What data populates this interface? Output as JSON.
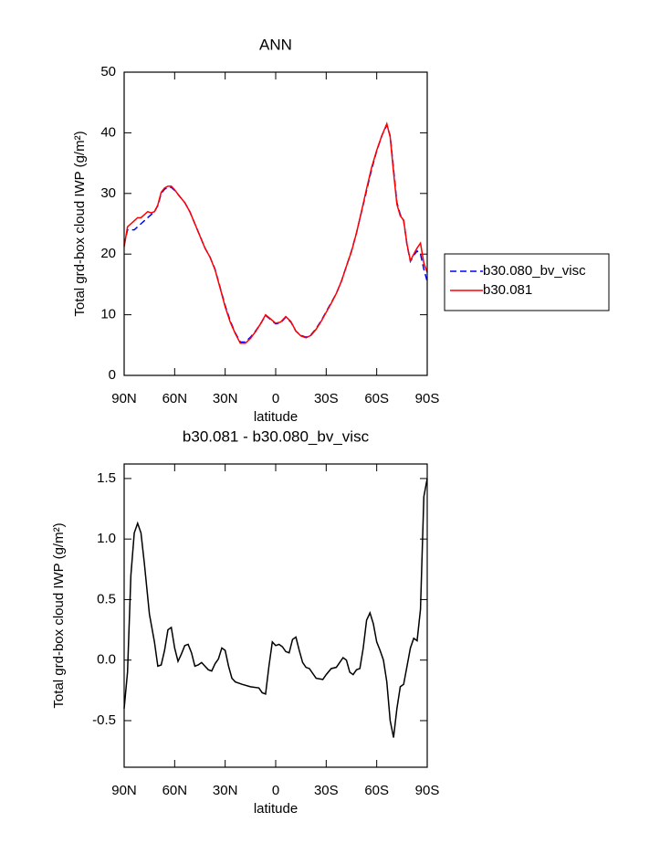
{
  "chart_data": [
    {
      "type": "line",
      "title": "ANN",
      "xlabel": "latitude",
      "ylabel": "Total grd-box cloud IWP (g/m²)",
      "x": [
        90,
        88,
        86,
        84,
        82,
        80,
        78,
        76,
        74,
        72,
        70,
        68,
        66,
        64,
        62,
        60,
        57,
        54,
        51,
        48,
        45,
        42,
        39,
        36,
        33,
        30,
        27,
        24,
        21,
        18,
        15,
        12,
        9,
        6,
        3,
        0,
        -3,
        -6,
        -9,
        -12,
        -15,
        -18,
        -21,
        -24,
        -27,
        -30,
        -33,
        -36,
        -39,
        -42,
        -45,
        -48,
        -51,
        -54,
        -57,
        -60,
        -63,
        -66,
        -68,
        -70,
        -72,
        -74,
        -76,
        -78,
        -80,
        -82,
        -84,
        -86,
        -88,
        -90
      ],
      "series": [
        {
          "name": "b30.080_bv_visc",
          "color": "#0000ff",
          "linestyle": "dashed",
          "values": [
            21.5,
            24,
            24,
            24,
            24.5,
            25,
            25.5,
            26,
            26.5,
            27,
            28,
            30,
            30.7,
            31,
            31,
            30.5,
            29.5,
            28.5,
            27,
            25,
            23,
            21,
            19.5,
            17.5,
            14.5,
            11.5,
            9,
            7,
            5.5,
            5.5,
            6.3,
            7.3,
            8.5,
            9.9,
            9.2,
            8.5,
            8.7,
            9.6,
            8.8,
            7.3,
            6.6,
            6.3,
            6.7,
            7.7,
            9,
            10.5,
            12,
            13.5,
            15.5,
            18,
            20.5,
            23.5,
            27,
            30.5,
            34,
            37,
            39.5,
            41.3,
            39.5,
            34,
            28.5,
            26.5,
            25.5,
            21.5,
            18.8,
            19.8,
            20.5,
            20,
            17.5,
            15.5
          ]
        },
        {
          "name": "b30.081",
          "color": "#ff0000",
          "linestyle": "solid",
          "values": [
            21.2,
            24.5,
            25,
            25.5,
            26,
            26,
            26.5,
            27,
            26.8,
            27,
            28.1,
            30.2,
            30.9,
            31.2,
            31.2,
            30.6,
            29.5,
            28.5,
            27,
            25,
            23,
            21,
            19.5,
            17.4,
            14.4,
            11.3,
            8.8,
            6.9,
            5.3,
            5.3,
            6.1,
            7.2,
            8.5,
            10,
            9.3,
            8.6,
            8.8,
            9.7,
            8.9,
            7.3,
            6.5,
            6.2,
            6.6,
            7.6,
            8.9,
            10.4,
            11.9,
            13.5,
            15.5,
            18,
            20.4,
            23.5,
            27.1,
            30.8,
            34.3,
            37.1,
            39.5,
            41.5,
            39.3,
            33.5,
            28.2,
            26.3,
            25.6,
            21.6,
            18.9,
            20,
            21,
            21.8,
            18.5,
            17
          ]
        }
      ],
      "xlim": [
        90,
        -90
      ],
      "xticks": [
        {
          "value": 90,
          "label": "90N"
        },
        {
          "value": 60,
          "label": "60N"
        },
        {
          "value": 30,
          "label": "30N"
        },
        0,
        {
          "value": -30,
          "label": "30S"
        },
        {
          "value": -60,
          "label": "60S"
        },
        {
          "value": -90,
          "label": "90S"
        }
      ],
      "ylim": [
        0,
        50
      ],
      "yticks": [
        0,
        10,
        20,
        30,
        40,
        50
      ],
      "legend": "right"
    },
    {
      "type": "line",
      "title": "b30.081 - b30.080_bv_visc",
      "xlabel": "latitude",
      "ylabel": "Total grd-box cloud IWP (g/m²)",
      "x": [
        90,
        88,
        86,
        84,
        82,
        80,
        78,
        75,
        72,
        70,
        68,
        66,
        64,
        62,
        60,
        58,
        56,
        54,
        52,
        50,
        48,
        46,
        44,
        42,
        40,
        38,
        36,
        34,
        32,
        30,
        28,
        26,
        24,
        20,
        15,
        10,
        8,
        6,
        4,
        2,
        0,
        -2,
        -4,
        -6,
        -8,
        -10,
        -12,
        -14,
        -16,
        -18,
        -20,
        -24,
        -28,
        -30,
        -33,
        -36,
        -40,
        -42,
        -44,
        -46,
        -48,
        -50,
        -52,
        -54,
        -56,
        -58,
        -60,
        -62,
        -64,
        -66,
        -68,
        -70,
        -72,
        -74,
        -76,
        -78,
        -80,
        -82,
        -84,
        -86,
        -88,
        -90
      ],
      "color": "#000000",
      "values": [
        -0.4,
        -0.1,
        0.7,
        1.05,
        1.13,
        1.05,
        0.8,
        0.38,
        0.15,
        -0.05,
        -0.04,
        0.08,
        0.25,
        0.27,
        0.1,
        -0.01,
        0.05,
        0.12,
        0.13,
        0.06,
        -0.05,
        -0.04,
        -0.02,
        -0.05,
        -0.08,
        -0.09,
        -0.03,
        0.01,
        0.1,
        0.08,
        -0.05,
        -0.15,
        -0.18,
        -0.2,
        -0.22,
        -0.23,
        -0.27,
        -0.28,
        -0.05,
        0.15,
        0.12,
        0.13,
        0.11,
        0.07,
        0.06,
        0.17,
        0.19,
        0.08,
        -0.02,
        -0.06,
        -0.07,
        -0.15,
        -0.16,
        -0.12,
        -0.07,
        -0.06,
        0.02,
        0,
        -0.1,
        -0.12,
        -0.08,
        -0.07,
        0.1,
        0.33,
        0.39,
        0.3,
        0.15,
        0.08,
        0,
        -0.18,
        -0.5,
        -0.64,
        -0.4,
        -0.22,
        -0.2,
        -0.05,
        0.1,
        0.18,
        0.16,
        0.42,
        1.35,
        1.5
      ],
      "xlim": [
        90,
        -90
      ],
      "xticks": [
        {
          "value": 90,
          "label": "90N"
        },
        {
          "value": 60,
          "label": "60N"
        },
        {
          "value": 30,
          "label": "30N"
        },
        0,
        {
          "value": -30,
          "label": "30S"
        },
        {
          "value": -60,
          "label": "60S"
        },
        {
          "value": -90,
          "label": "90S"
        }
      ],
      "ylim": [
        -0.885,
        1.62
      ],
      "yticks": [
        -0.5,
        {
          "value": 0,
          "label": "0.0"
        },
        0.5,
        {
          "value": 1,
          "label": "1.0"
        },
        1.5
      ]
    }
  ]
}
